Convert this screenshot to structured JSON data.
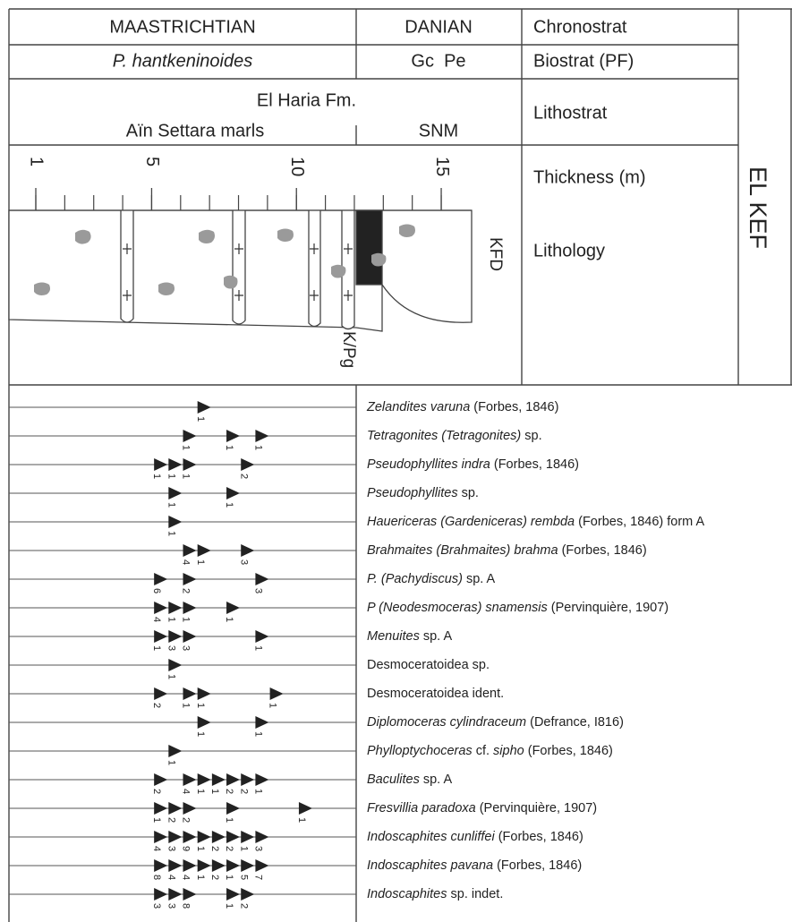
{
  "chronostrat": {
    "maastrichtian": "MAASTRICHTIAN",
    "danian": "DANIAN",
    "label": "Chronostrat"
  },
  "biostrat": {
    "maastrichtian": "P. hantkeninoides",
    "danian": "Gc  Pe",
    "label": "Biostrat (PF)"
  },
  "lithostrat": {
    "formation": "El Haria Fm.",
    "member": "Aïn Settara marls",
    "snm": "SNM",
    "label": "Lithostrat"
  },
  "thickness": {
    "label": "Thickness (m)",
    "ticks": [
      1,
      5,
      10,
      15
    ]
  },
  "lithology": {
    "label": "Lithology",
    "kfd": "KFD",
    "boundary": "K/Pg"
  },
  "section": "EL KEF",
  "taxa": [
    {
      "name": [
        {
          "text": "Zelandites varuna",
          "italic": true
        },
        {
          "text": " (Forbes, 1846)",
          "italic": false
        }
      ],
      "occurrences": [
        {
          "level": 6.8,
          "count": 1
        }
      ]
    },
    {
      "name": [
        {
          "text": "Tetragonites (Tetragonites)",
          "italic": true
        },
        {
          "text": " sp.",
          "italic": false
        }
      ],
      "occurrences": [
        {
          "level": 6.3,
          "count": 1
        },
        {
          "level": 7.8,
          "count": 1
        },
        {
          "level": 8.8,
          "count": 1
        }
      ]
    },
    {
      "name": [
        {
          "text": "Pseudophyllites indra",
          "italic": true
        },
        {
          "text": " (Forbes, 1846)",
          "italic": false
        }
      ],
      "occurrences": [
        {
          "level": 5.3,
          "count": 1
        },
        {
          "level": 5.8,
          "count": 1
        },
        {
          "level": 6.3,
          "count": 1
        },
        {
          "level": 8.3,
          "count": 2
        }
      ]
    },
    {
      "name": [
        {
          "text": "Pseudophyllites",
          "italic": true
        },
        {
          "text": " sp.",
          "italic": false
        }
      ],
      "occurrences": [
        {
          "level": 5.8,
          "count": 1
        },
        {
          "level": 7.8,
          "count": 1
        }
      ]
    },
    {
      "name": [
        {
          "text": "Hauericeras (Gardeniceras) rembda",
          "italic": true
        },
        {
          "text": " (Forbes, 1846) form A",
          "italic": false
        }
      ],
      "occurrences": [
        {
          "level": 5.8,
          "count": 1
        }
      ]
    },
    {
      "name": [
        {
          "text": "Brahmaites (Brahmaites) brahma",
          "italic": true
        },
        {
          "text": " (Forbes, 1846)",
          "italic": false
        }
      ],
      "occurrences": [
        {
          "level": 6.3,
          "count": 4
        },
        {
          "level": 6.8,
          "count": 1
        },
        {
          "level": 8.3,
          "count": 3
        }
      ]
    },
    {
      "name": [
        {
          "text": "P. (Pachydiscus)",
          "italic": true
        },
        {
          "text": " sp. A",
          "italic": false
        }
      ],
      "occurrences": [
        {
          "level": 5.3,
          "count": 6
        },
        {
          "level": 6.3,
          "count": 2
        },
        {
          "level": 8.8,
          "count": 3
        }
      ]
    },
    {
      "name": [
        {
          "text": "P (Neodesmoceras) snamensis",
          "italic": true
        },
        {
          "text": " (Pervinquière, 1907)",
          "italic": false
        }
      ],
      "occurrences": [
        {
          "level": 5.3,
          "count": 4
        },
        {
          "level": 5.8,
          "count": 1
        },
        {
          "level": 6.3,
          "count": 1
        },
        {
          "level": 7.8,
          "count": 1
        }
      ]
    },
    {
      "name": [
        {
          "text": "Menuites",
          "italic": true
        },
        {
          "text": " sp. A",
          "italic": false
        }
      ],
      "occurrences": [
        {
          "level": 5.3,
          "count": 1
        },
        {
          "level": 5.8,
          "count": 3
        },
        {
          "level": 6.3,
          "count": 3
        },
        {
          "level": 8.8,
          "count": 1
        }
      ]
    },
    {
      "name": [
        {
          "text": "Desmoceratoidea sp.",
          "italic": false
        }
      ],
      "occurrences": [
        {
          "level": 5.8,
          "count": 1
        }
      ]
    },
    {
      "name": [
        {
          "text": "Desmoceratoidea ident.",
          "italic": false
        }
      ],
      "occurrences": [
        {
          "level": 5.3,
          "count": 2
        },
        {
          "level": 6.3,
          "count": 1
        },
        {
          "level": 6.8,
          "count": 1
        },
        {
          "level": 9.3,
          "count": 1
        }
      ]
    },
    {
      "name": [
        {
          "text": "Diplomoceras cylindraceum",
          "italic": true
        },
        {
          "text": " (Defrance, I816)",
          "italic": false
        }
      ],
      "occurrences": [
        {
          "level": 6.8,
          "count": 1
        },
        {
          "level": 8.8,
          "count": 1
        }
      ]
    },
    {
      "name": [
        {
          "text": "Phylloptychoceras",
          "italic": true
        },
        {
          "text": " cf. ",
          "italic": false
        },
        {
          "text": "sipho",
          "italic": true
        },
        {
          "text": " (Forbes, 1846)",
          "italic": false
        }
      ],
      "occurrences": [
        {
          "level": 5.8,
          "count": 1
        }
      ]
    },
    {
      "name": [
        {
          "text": "Baculites",
          "italic": true
        },
        {
          "text": " sp. A",
          "italic": false
        }
      ],
      "occurrences": [
        {
          "level": 5.3,
          "count": 2
        },
        {
          "level": 6.3,
          "count": 4
        },
        {
          "level": 6.8,
          "count": 1
        },
        {
          "level": 7.3,
          "count": 1
        },
        {
          "level": 7.8,
          "count": 2
        },
        {
          "level": 8.3,
          "count": 2
        },
        {
          "level": 8.8,
          "count": 1
        }
      ]
    },
    {
      "name": [
        {
          "text": "Fresvillia paradoxa",
          "italic": true
        },
        {
          "text": " (Pervinquière, 1907)",
          "italic": false
        }
      ],
      "occurrences": [
        {
          "level": 5.3,
          "count": 1
        },
        {
          "level": 5.8,
          "count": 2
        },
        {
          "level": 6.3,
          "count": 2
        },
        {
          "level": 7.8,
          "count": 1
        },
        {
          "level": 10.3,
          "count": 1
        }
      ]
    },
    {
      "name": [
        {
          "text": "Indoscaphites cunliffei",
          "italic": true
        },
        {
          "text": " (Forbes, 1846)",
          "italic": false
        }
      ],
      "occurrences": [
        {
          "level": 5.3,
          "count": 4
        },
        {
          "level": 5.8,
          "count": 3
        },
        {
          "level": 6.3,
          "count": 9
        },
        {
          "level": 6.8,
          "count": 1
        },
        {
          "level": 7.3,
          "count": 2
        },
        {
          "level": 7.8,
          "count": 2
        },
        {
          "level": 8.3,
          "count": 1
        },
        {
          "level": 8.8,
          "count": 3
        }
      ]
    },
    {
      "name": [
        {
          "text": "Indoscaphites pavana",
          "italic": true
        },
        {
          "text": " (Forbes, 1846)",
          "italic": false
        }
      ],
      "occurrences": [
        {
          "level": 5.3,
          "count": 8
        },
        {
          "level": 5.8,
          "count": 4
        },
        {
          "level": 6.3,
          "count": 4
        },
        {
          "level": 6.8,
          "count": 1
        },
        {
          "level": 7.3,
          "count": 2
        },
        {
          "level": 7.8,
          "count": 1
        },
        {
          "level": 8.3,
          "count": 5
        },
        {
          "level": 8.8,
          "count": 7
        }
      ]
    },
    {
      "name": [
        {
          "text": "Indoscaphites",
          "italic": true
        },
        {
          "text": " sp. indet.",
          "italic": false
        }
      ],
      "occurrences": [
        {
          "level": 5.3,
          "count": 3
        },
        {
          "level": 5.8,
          "count": 3
        },
        {
          "level": 6.3,
          "count": 8
        },
        {
          "level": 7.8,
          "count": 1
        },
        {
          "level": 8.3,
          "count": 2
        }
      ]
    }
  ]
}
